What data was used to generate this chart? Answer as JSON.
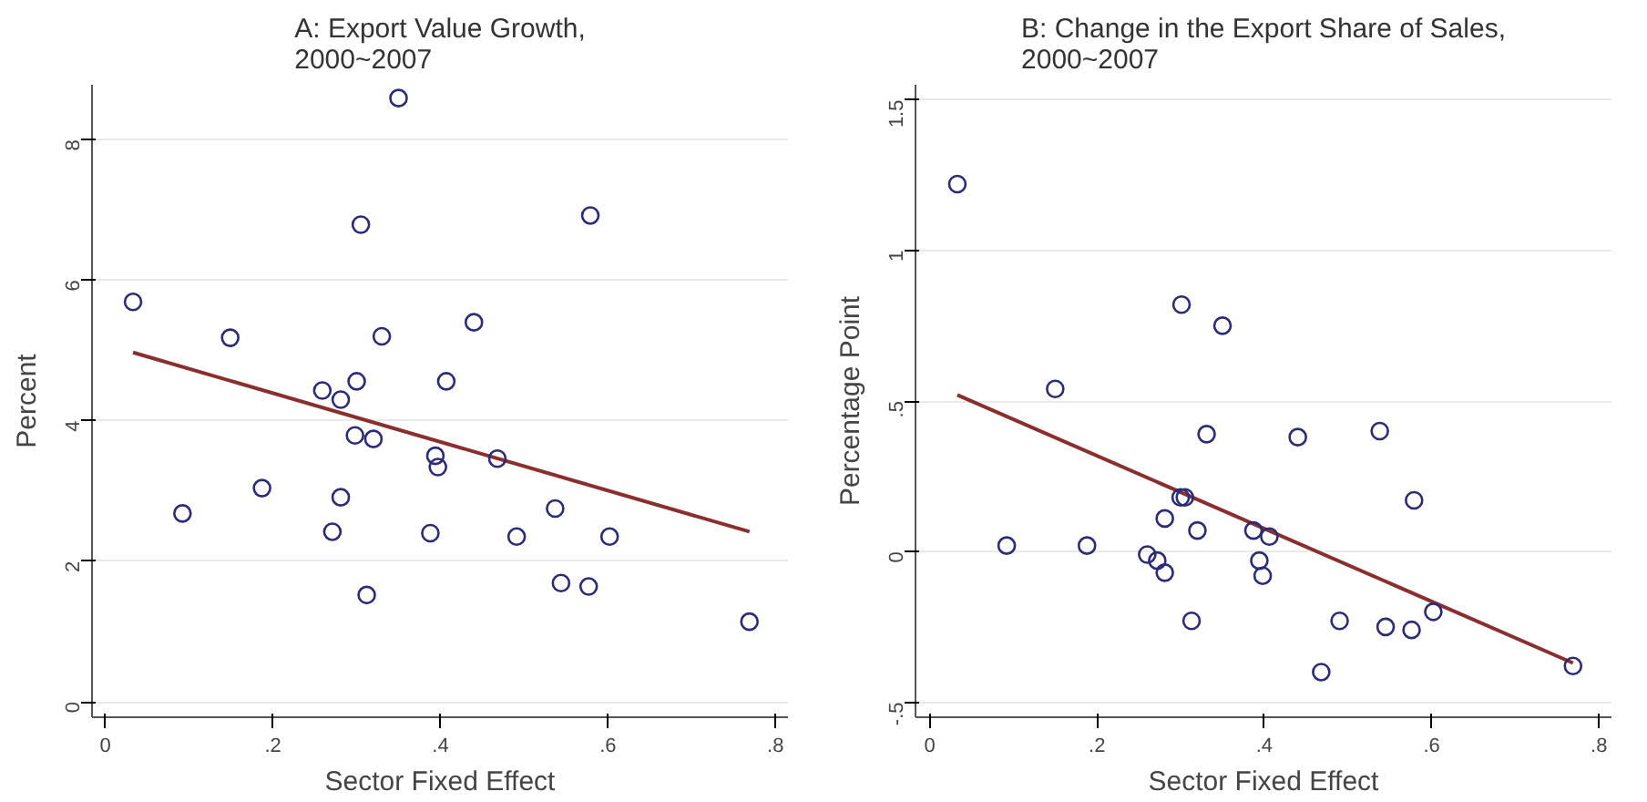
{
  "chart_data": [
    {
      "type": "scatter",
      "title": "A: Export Value Growth,\n2000~2007",
      "xlabel": "Sector Fixed Effect",
      "ylabel": "Percent",
      "grid": "y",
      "xlim": [
        -0.016,
        0.815
      ],
      "ylim": [
        -0.22,
        8.78
      ],
      "xticks": [
        0,
        {
          "value": 0.2,
          "label": ".2"
        },
        {
          "value": 0.4,
          "label": ".4"
        },
        {
          "value": 0.6,
          "label": ".6"
        },
        {
          "value": 0.8,
          "label": ".8"
        }
      ],
      "yticks": [
        0,
        2,
        4,
        6,
        8
      ],
      "series": [
        {
          "marker": "circle",
          "color": "#2b2b7a",
          "x": [
            0.033,
            0.149,
            0.092,
            0.187,
            0.259,
            0.281,
            0.3,
            0.305,
            0.35,
            0.33,
            0.298,
            0.32,
            0.281,
            0.271,
            0.312,
            0.394,
            0.397,
            0.388,
            0.407,
            0.44,
            0.468,
            0.491,
            0.537,
            0.544,
            0.579,
            0.577,
            0.602,
            0.769
          ],
          "values": [
            5.69,
            5.18,
            2.68,
            3.04,
            4.43,
            4.3,
            4.56,
            6.79,
            8.59,
            5.2,
            3.79,
            3.74,
            2.91,
            2.42,
            1.52,
            3.5,
            3.34,
            2.4,
            4.56,
            5.4,
            3.46,
            2.35,
            2.75,
            1.69,
            6.92,
            1.64,
            2.35,
            1.14
          ]
        },
        {
          "type": "line",
          "color": "#8b2e2e",
          "x": [
            0.033,
            0.769
          ],
          "values": [
            4.97,
            2.42
          ]
        }
      ]
    },
    {
      "type": "scatter",
      "title": "B: Change in the Export Share of Sales,\n2000~2007",
      "xlabel": "Sector Fixed Effect",
      "ylabel": "Percentage Point",
      "grid": "y",
      "xlim": [
        -0.017,
        0.815
      ],
      "ylim": [
        -0.55,
        1.55
      ],
      "xticks": [
        0,
        {
          "value": 0.2,
          "label": ".2"
        },
        {
          "value": 0.4,
          "label": ".4"
        },
        {
          "value": 0.6,
          "label": ".6"
        },
        {
          "value": 0.8,
          "label": ".8"
        }
      ],
      "yticks": [
        {
          "value": -0.5,
          "label": "-.5"
        },
        0,
        {
          "value": 0.5,
          "label": ".5"
        },
        1,
        1.5
      ],
      "series": [
        {
          "marker": "circle",
          "color": "#2b2b7a",
          "x": [
            0.033,
            0.15,
            0.092,
            0.188,
            0.26,
            0.272,
            0.281,
            0.281,
            0.301,
            0.3,
            0.305,
            0.35,
            0.331,
            0.32,
            0.313,
            0.387,
            0.406,
            0.394,
            0.398,
            0.44,
            0.468,
            0.49,
            0.538,
            0.545,
            0.579,
            0.576,
            0.602,
            0.769
          ],
          "values": [
            1.22,
            0.54,
            0.02,
            0.02,
            -0.01,
            -0.03,
            0.11,
            -0.07,
            0.82,
            0.18,
            0.18,
            0.75,
            0.39,
            0.07,
            -0.23,
            0.07,
            0.05,
            -0.03,
            -0.08,
            0.38,
            -0.4,
            -0.23,
            0.4,
            -0.25,
            0.17,
            -0.26,
            -0.2,
            -0.38
          ]
        },
        {
          "type": "line",
          "color": "#8b2e2e",
          "x": [
            0.033,
            0.769
          ],
          "values": [
            0.52,
            -0.37
          ]
        }
      ]
    }
  ]
}
